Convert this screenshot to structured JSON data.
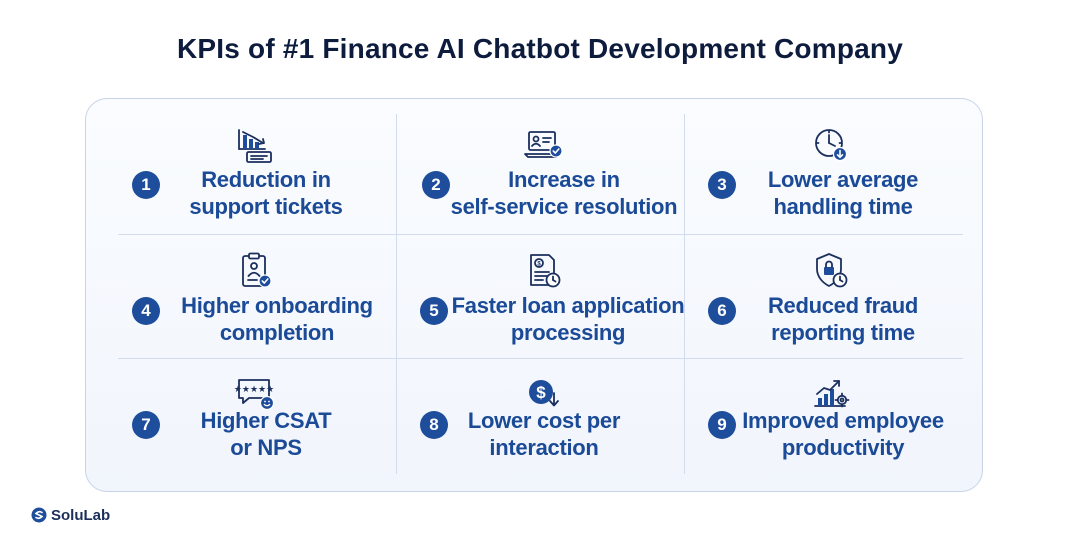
{
  "title": "KPIs of #1 Finance AI Chatbot Development Company",
  "kpis": [
    {
      "number": "1",
      "line1": "Reduction in",
      "line2": "support tickets",
      "icon": "declining-bar-chart-ticket-icon"
    },
    {
      "number": "2",
      "line1": "Increase in",
      "line2": "self-service resolution",
      "icon": "laptop-profile-check-icon"
    },
    {
      "number": "3",
      "line1": "Lower average",
      "line2": "handling time",
      "icon": "clock-down-arrow-icon"
    },
    {
      "number": "4",
      "line1": "Higher onboarding",
      "line2": "completion",
      "icon": "clipboard-user-check-icon"
    },
    {
      "number": "5",
      "line1": "Faster loan application",
      "line2": "processing",
      "icon": "dollar-document-clock-icon"
    },
    {
      "number": "6",
      "line1": "Reduced fraud",
      "line2": "reporting time",
      "icon": "shield-lock-clock-icon"
    },
    {
      "number": "7",
      "line1": "Higher CSAT",
      "line2": "or NPS",
      "icon": "rating-chat-smiley-icon"
    },
    {
      "number": "8",
      "line1": "Lower cost per",
      "line2": "interaction",
      "icon": "dollar-coin-down-arrow-icon"
    },
    {
      "number": "9",
      "line1": "Improved employee",
      "line2": "productivity",
      "icon": "growth-chart-gear-icon"
    }
  ],
  "brand": {
    "name": "SoluLab",
    "primary_color": "#1e4d9b",
    "title_color": "#0d1b3d"
  }
}
